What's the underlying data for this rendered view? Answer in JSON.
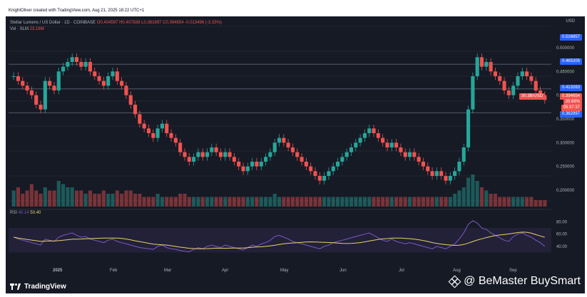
{
  "header": {
    "credit": "KnightOliver created with TradingView.com, Aug 21, 2025 18:22 UTC+1"
  },
  "legend": {
    "symbol": "Stellar Lumens / US Dollar · 1D · COINBASE",
    "open": "O0.404597",
    "high": "H0.407838",
    "low": "L0.381897",
    "close": "C0.394654",
    "change": "-0.013496 (-3.33%)",
    "vol_label": "Vol · XLM",
    "vol_value": "23.16M",
    "rsi_label": "RSI",
    "rsi_value1": "40.14",
    "rsi_value2": "50.40"
  },
  "axis": {
    "currency": "USD",
    "price_ticks": [
      "0.500000",
      "0.450000",
      "0.400000",
      "0.350000",
      "0.300000",
      "0.250000",
      "0.200000"
    ],
    "rsi_ticks": [
      "80.00",
      "60.00",
      "40.00"
    ],
    "time_labels": [
      "2025",
      "Feb",
      "Mar",
      "Apr",
      "May",
      "Jun",
      "Jul",
      "Aug",
      "Sep"
    ]
  },
  "price_boxes": {
    "top": "0.516857",
    "upper_line": "0.465205",
    "mid_line": "0.413263",
    "current": "0.394654",
    "countdown": "05:37:37",
    "current_left": "30.3B/USD",
    "current_pct": "20.69%",
    "lower_line": "0.362997"
  },
  "colors": {
    "up": "#26a69a",
    "down": "#ef5350",
    "background": "#161a25",
    "rsi_line": "#7e57c2",
    "rsi_ma": "#e8d26a",
    "line_marker": "#2962ff"
  },
  "footer": {
    "logo": "TradingView",
    "watermark": "@ BeMaster BuySmart"
  },
  "chart_data": {
    "type": "candlestick",
    "title": "Stellar Lumens / US Dollar · 1D · COINBASE",
    "ylabel": "USD",
    "ylim": [
      0.17,
      0.53
    ],
    "horizontal_lines": [
      0.465205,
      0.413263,
      0.362997
    ],
    "x_labels": [
      "2025",
      "Feb",
      "Mar",
      "Apr",
      "May",
      "Jun",
      "Jul",
      "Aug",
      "Sep"
    ],
    "close_series": [
      0.44,
      0.43,
      0.42,
      0.41,
      0.4,
      0.38,
      0.37,
      0.43,
      0.42,
      0.41,
      0.45,
      0.46,
      0.47,
      0.48,
      0.47,
      0.46,
      0.47,
      0.45,
      0.44,
      0.43,
      0.42,
      0.44,
      0.45,
      0.43,
      0.42,
      0.4,
      0.38,
      0.36,
      0.34,
      0.33,
      0.32,
      0.31,
      0.33,
      0.34,
      0.32,
      0.31,
      0.3,
      0.28,
      0.27,
      0.26,
      0.27,
      0.28,
      0.27,
      0.28,
      0.29,
      0.28,
      0.27,
      0.28,
      0.27,
      0.26,
      0.25,
      0.24,
      0.25,
      0.26,
      0.25,
      0.26,
      0.27,
      0.28,
      0.3,
      0.31,
      0.3,
      0.29,
      0.28,
      0.27,
      0.26,
      0.25,
      0.24,
      0.23,
      0.22,
      0.23,
      0.24,
      0.25,
      0.26,
      0.27,
      0.28,
      0.29,
      0.3,
      0.31,
      0.32,
      0.33,
      0.32,
      0.31,
      0.3,
      0.29,
      0.3,
      0.29,
      0.28,
      0.27,
      0.28,
      0.27,
      0.26,
      0.25,
      0.24,
      0.23,
      0.24,
      0.23,
      0.22,
      0.23,
      0.24,
      0.26,
      0.29,
      0.37,
      0.44,
      0.48,
      0.46,
      0.47,
      0.45,
      0.44,
      0.43,
      0.41,
      0.4,
      0.42,
      0.44,
      0.45,
      0.44,
      0.43,
      0.41,
      0.4,
      0.39
    ],
    "volume_relative": [
      0.5,
      0.6,
      0.4,
      0.5,
      0.7,
      0.5,
      0.4,
      0.6,
      0.5,
      0.5,
      0.8,
      0.7,
      0.6,
      0.6,
      0.5,
      0.5,
      0.4,
      0.5,
      0.4,
      0.4,
      0.5,
      0.4,
      0.4,
      0.5,
      0.4,
      0.5,
      0.5,
      0.4,
      0.4,
      0.3,
      0.3,
      0.3,
      0.4,
      0.3,
      0.3,
      0.3,
      0.3,
      0.4,
      0.4,
      0.3,
      0.3,
      0.3,
      0.3,
      0.3,
      0.3,
      0.3,
      0.3,
      0.3,
      0.3,
      0.3,
      0.3,
      0.3,
      0.3,
      0.3,
      0.3,
      0.3,
      0.3,
      0.3,
      0.4,
      0.3,
      0.3,
      0.3,
      0.3,
      0.3,
      0.3,
      0.3,
      0.3,
      0.3,
      0.3,
      0.3,
      0.3,
      0.3,
      0.3,
      0.3,
      0.3,
      0.3,
      0.3,
      0.3,
      0.3,
      0.3,
      0.3,
      0.3,
      0.3,
      0.3,
      0.3,
      0.3,
      0.3,
      0.3,
      0.3,
      0.3,
      0.3,
      0.3,
      0.3,
      0.3,
      0.3,
      0.3,
      0.3,
      0.3,
      0.4,
      0.5,
      0.6,
      0.9,
      1.0,
      0.8,
      0.6,
      0.5,
      0.4,
      0.4,
      0.3,
      0.3,
      0.3,
      0.3,
      0.3,
      0.3,
      0.3,
      0.3,
      0.2,
      0.2,
      0.2
    ],
    "rsi_series": [
      55,
      52,
      50,
      48,
      46,
      44,
      42,
      52,
      50,
      48,
      55,
      58,
      60,
      62,
      58,
      55,
      56,
      52,
      50,
      48,
      46,
      50,
      52,
      48,
      46,
      44,
      42,
      40,
      38,
      37,
      36,
      35,
      40,
      42,
      38,
      36,
      35,
      33,
      32,
      31,
      35,
      38,
      36,
      40,
      42,
      40,
      38,
      42,
      40,
      38,
      36,
      34,
      38,
      42,
      40,
      44,
      46,
      50,
      56,
      58,
      55,
      52,
      48,
      46,
      44,
      42,
      40,
      38,
      36,
      40,
      42,
      46,
      48,
      50,
      52,
      54,
      56,
      58,
      60,
      62,
      58,
      54,
      50,
      48,
      52,
      48,
      46,
      44,
      46,
      44,
      42,
      40,
      38,
      36,
      40,
      38,
      36,
      40,
      44,
      52,
      62,
      76,
      82,
      78,
      70,
      68,
      62,
      58,
      54,
      50,
      48,
      56,
      60,
      62,
      58,
      55,
      50,
      46,
      40
    ]
  }
}
